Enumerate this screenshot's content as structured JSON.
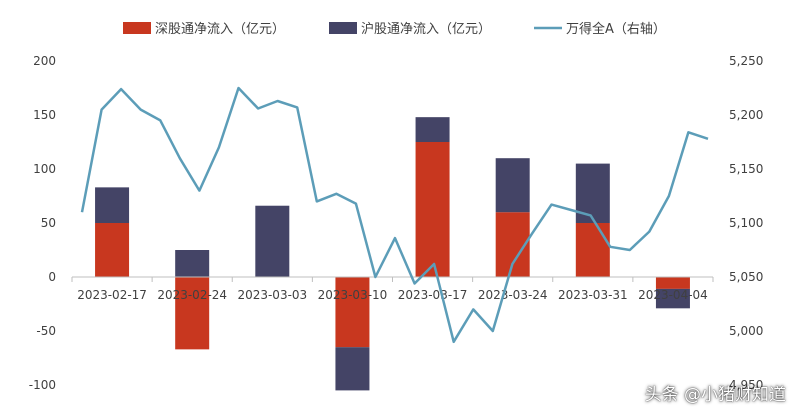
{
  "chart_data": {
    "type": "bar",
    "stacked": true,
    "categories": [
      "2023-02-17",
      "2023-02-24",
      "2023-03-03",
      "2023-03-10",
      "2023-03-17",
      "2023-03-24",
      "2023-03-31",
      "2023-04-04"
    ],
    "series": [
      {
        "name": "深股通净流入（亿元）",
        "color": "#C8371F",
        "values": [
          50,
          -67,
          0,
          -65,
          125,
          60,
          50,
          -11
        ]
      },
      {
        "name": "沪股通净流入（亿元）",
        "color": "#444466",
        "values": [
          33,
          25,
          66,
          -40,
          23,
          50,
          55,
          -18
        ]
      }
    ],
    "line_series": {
      "name": "万得全A（右轴）",
      "color": "#5C9DB8",
      "axis": "right",
      "values": [
        5110,
        5205,
        5224,
        5205,
        5195,
        5160,
        5130,
        5170,
        5225,
        5206,
        5213,
        5207,
        5120,
        5127,
        5118,
        5050,
        5086,
        5044,
        5062,
        4990,
        5020,
        5000,
        5062,
        5090,
        5117,
        5112,
        5107,
        5078,
        5075,
        5092,
        5125,
        5184,
        5178
      ]
    },
    "y_left": {
      "min": -100,
      "max": 200,
      "ticks": [
        200,
        150,
        100,
        50,
        0,
        -50,
        -100
      ],
      "tick_labels": [
        "200",
        "150",
        "100",
        "50",
        "0",
        "-50",
        "-100"
      ]
    },
    "y_right": {
      "min": 4950,
      "max": 5250,
      "ticks": [
        5250,
        5200,
        5150,
        5100,
        5050,
        5000,
        4950
      ],
      "tick_labels": [
        "5,250",
        "5,200",
        "5,150",
        "5,100",
        "5,050",
        "5,000",
        "4,950"
      ]
    },
    "legend_position": "top",
    "grid": false
  },
  "watermark": "头条 @小猪财知道"
}
